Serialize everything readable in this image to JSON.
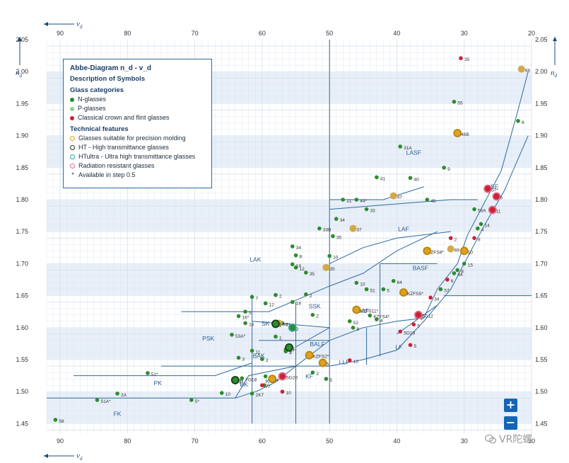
{
  "chart_data": {
    "type": "scatter",
    "title": "Abbe-Diagram n_d - v_d",
    "xlabel": "v_d",
    "ylabel": "n_d",
    "xlim": [
      92,
      20
    ],
    "ylim": [
      1.435,
      2.05
    ],
    "x_ticks": [
      "90",
      "80",
      "70",
      "60",
      "50",
      "40",
      "30",
      "20"
    ],
    "y_ticks": [
      "2.05",
      "2.00",
      "1.95",
      "1.90",
      "1.85",
      "1.80",
      "1.75",
      "1.70",
      "1.65",
      "1.60",
      "1.55",
      "1.50",
      "1.45"
    ],
    "grid": true,
    "bands": [
      [
        1.95,
        2.0
      ],
      [
        1.85,
        1.9
      ],
      [
        1.75,
        1.8
      ],
      [
        1.65,
        1.7
      ],
      [
        1.55,
        1.6
      ],
      [
        1.45,
        1.5
      ]
    ],
    "legend_position": "top-left",
    "regions": [
      {
        "label": "LASF",
        "x": 37.5,
        "y": 1.87
      },
      {
        "label": "SF",
        "x": 25.5,
        "y": 1.817
      },
      {
        "label": "LAF",
        "x": 39,
        "y": 1.751
      },
      {
        "label": "LAK",
        "x": 61,
        "y": 1.703
      },
      {
        "label": "BASF",
        "x": 36.5,
        "y": 1.69
      },
      {
        "label": "SSK",
        "x": 52.2,
        "y": 1.63
      },
      {
        "label": "BAF",
        "x": 45,
        "y": 1.623
      },
      {
        "label": "SK",
        "x": 59.5,
        "y": 1.603
      },
      {
        "label": "PSK",
        "x": 68,
        "y": 1.58
      },
      {
        "label": "BALF",
        "x": 51.8,
        "y": 1.571
      },
      {
        "label": "LF",
        "x": 39.7,
        "y": 1.566
      },
      {
        "label": "BAK",
        "x": 60.5,
        "y": 1.553
      },
      {
        "label": "LLF",
        "x": 47.8,
        "y": 1.543
      },
      {
        "label": "KF",
        "x": 53,
        "y": 1.521
      },
      {
        "label": "K",
        "x": 59.2,
        "y": 1.513
      },
      {
        "label": "BK",
        "x": 62.7,
        "y": 1.508
      },
      {
        "label": "PK",
        "x": 75.5,
        "y": 1.51
      },
      {
        "label": "FK",
        "x": 81.5,
        "y": 1.462
      }
    ],
    "boundaries": [
      [
        [
          92,
          1.49
        ],
        [
          64,
          1.49
        ],
        [
          61,
          1.5
        ],
        [
          60.5,
          1.502
        ],
        [
          58,
          1.515
        ],
        [
          55,
          1.54
        ],
        [
          50,
          1.54
        ],
        [
          45,
          1.55
        ],
        [
          40,
          1.565
        ],
        [
          36,
          1.61
        ],
        [
          32,
          1.66
        ],
        [
          30,
          1.7
        ],
        [
          27,
          1.76
        ],
        [
          24,
          1.815
        ],
        [
          20.5,
          1.9
        ]
      ],
      [
        [
          64,
          1.49
        ],
        [
          62,
          1.525
        ],
        [
          55,
          1.54
        ],
        [
          50,
          1.58
        ],
        [
          45,
          1.6
        ],
        [
          40,
          1.61
        ],
        [
          36,
          1.615
        ],
        [
          34,
          1.66
        ],
        [
          31,
          1.7
        ],
        [
          29.5,
          1.745
        ],
        [
          24.5,
          1.845
        ],
        [
          22,
          1.94
        ],
        [
          20.5,
          2.0
        ]
      ],
      [
        [
          75,
          1.54
        ],
        [
          55,
          1.54
        ]
      ],
      [
        [
          88,
          1.525
        ],
        [
          67,
          1.525
        ],
        [
          61.5,
          1.545
        ]
      ],
      [
        [
          60.5,
          1.58
        ],
        [
          50,
          1.58
        ]
      ],
      [
        [
          61.5,
          1.61
        ],
        [
          50,
          1.6
        ]
      ],
      [
        [
          72,
          1.625
        ],
        [
          59,
          1.625
        ],
        [
          50,
          1.665
        ],
        [
          45,
          1.685
        ],
        [
          40,
          1.72
        ],
        [
          34,
          1.75
        ]
      ],
      [
        [
          61.5,
          1.45
        ],
        [
          61.5,
          1.652
        ]
      ],
      [
        [
          55,
          1.45
        ],
        [
          55,
          1.64
        ]
      ],
      [
        [
          50,
          1.45
        ],
        [
          50,
          2.05
        ]
      ],
      [
        [
          44.5,
          1.542
        ],
        [
          44.5,
          1.6
        ]
      ],
      [
        [
          42.5,
          1.555
        ],
        [
          42.5,
          1.7
        ]
      ],
      [
        [
          42.5,
          1.7
        ],
        [
          34,
          1.7
        ]
      ],
      [
        [
          50,
          1.8
        ],
        [
          42,
          1.8
        ],
        [
          36,
          1.82
        ]
      ],
      [
        [
          50,
          1.785
        ],
        [
          32,
          1.8
        ],
        [
          28,
          1.8
        ]
      ],
      [
        [
          50,
          1.7
        ],
        [
          45,
          1.725
        ],
        [
          40,
          1.74
        ],
        [
          32,
          1.75
        ]
      ],
      [
        [
          55,
          1.57
        ],
        [
          50,
          1.6
        ]
      ],
      [
        [
          33,
          1.65
        ],
        [
          20,
          1.65
        ]
      ],
      [
        [
          40,
          1.59
        ],
        [
          36,
          1.62
        ],
        [
          34,
          1.635
        ]
      ]
    ],
    "series": [
      {
        "name": "N-glasses",
        "color": "#2e8b2e",
        "points": [
          [
            90.7,
            1.456,
            "58"
          ],
          [
            84.5,
            1.487,
            "51A*"
          ],
          [
            81.5,
            1.497,
            "2A"
          ],
          [
            77,
            1.529,
            "51*"
          ],
          [
            70.5,
            1.487,
            "5*"
          ],
          [
            66,
            1.498,
            "10"
          ],
          [
            64,
            1.517,
            "7*"
          ],
          [
            63,
            1.521,
            "7G18"
          ],
          [
            61.5,
            1.497,
            "2K7"
          ],
          [
            59.7,
            1.51,
            "7"
          ],
          [
            61.5,
            1.564,
            "11"
          ],
          [
            63.5,
            1.553,
            "3"
          ],
          [
            64.5,
            1.589,
            "53A*"
          ],
          [
            63.5,
            1.618,
            "16*"
          ],
          [
            62.5,
            1.607,
            "14"
          ],
          [
            62.5,
            1.625,
            "5"
          ],
          [
            61.5,
            1.648,
            "7"
          ],
          [
            59.5,
            1.638,
            "12"
          ],
          [
            58,
            1.651,
            "2"
          ],
          [
            57,
            1.607,
            "2*"
          ],
          [
            56.5,
            1.566,
            "57"
          ],
          [
            56.5,
            1.563,
            "4"
          ],
          [
            58,
            1.586,
            "1"
          ],
          [
            52.5,
            1.62,
            "2"
          ],
          [
            55.5,
            1.64,
            "18"
          ],
          [
            53.5,
            1.652,
            "2"
          ],
          [
            55,
            1.694,
            "12"
          ],
          [
            55.5,
            1.699,
            "14"
          ],
          [
            55,
            1.713,
            "8"
          ],
          [
            53.5,
            1.686,
            "35"
          ],
          [
            55.5,
            1.727,
            "34"
          ],
          [
            51.5,
            1.755,
            "33B"
          ],
          [
            49.5,
            1.743,
            "35"
          ],
          [
            50,
            1.712,
            "10"
          ],
          [
            49,
            1.77,
            "34"
          ],
          [
            48,
            1.8,
            "21"
          ],
          [
            46,
            1.8,
            "44*"
          ],
          [
            44.5,
            1.785,
            "33"
          ],
          [
            43,
            1.835,
            "41"
          ],
          [
            39.5,
            1.883,
            "31A"
          ],
          [
            38,
            1.834,
            "40"
          ],
          [
            35.5,
            1.8,
            "45"
          ],
          [
            33,
            1.85,
            "9"
          ],
          [
            31.5,
            1.953,
            "55"
          ],
          [
            22,
            1.923,
            "6"
          ],
          [
            46,
            1.67,
            "10"
          ],
          [
            44.5,
            1.66,
            "51"
          ],
          [
            40.5,
            1.673,
            "64"
          ],
          [
            42,
            1.66,
            "5"
          ],
          [
            47,
            1.61,
            "52"
          ],
          [
            44,
            1.619,
            "KZFS4*"
          ],
          [
            43,
            1.613,
            "4"
          ],
          [
            46.5,
            1.6,
            "8"
          ],
          [
            52.5,
            1.53,
            "2"
          ],
          [
            50.5,
            1.52,
            "5"
          ],
          [
            59.5,
            1.524,
            "5"
          ],
          [
            60,
            1.551,
            "2"
          ],
          [
            27.5,
            1.762,
            "14"
          ],
          [
            28.5,
            1.785,
            "56A"
          ],
          [
            28,
            1.755,
            "4"
          ],
          [
            30,
            1.7,
            "15"
          ],
          [
            31,
            1.69,
            "8"
          ],
          [
            31.5,
            1.685,
            "64"
          ],
          [
            33.5,
            1.66,
            "57"
          ]
        ]
      },
      {
        "name": "P-glasses",
        "color": "#d4a94a",
        "points": [
          [
            21.5,
            2.004,
            "68"
          ],
          [
            40.5,
            1.806,
            "47"
          ],
          [
            46.5,
            1.755,
            "37"
          ],
          [
            32,
            1.723,
            "69"
          ],
          [
            50.5,
            1.694,
            "35"
          ],
          [
            57.5,
            1.607,
            "60"
          ]
        ]
      },
      {
        "name": "Classical crown and flint glasses",
        "color": "#cc2233",
        "points": [
          [
            30.5,
            2.021,
            "35"
          ],
          [
            60,
            1.51,
            "7"
          ],
          [
            57,
            1.5,
            "10"
          ],
          [
            47,
            1.549,
            "10"
          ],
          [
            38,
            1.573,
            "5"
          ],
          [
            39.5,
            1.594,
            "5G19"
          ],
          [
            37.5,
            1.605,
            "5"
          ],
          [
            37,
            1.617,
            "2"
          ],
          [
            35,
            1.647,
            "34"
          ],
          [
            32,
            1.74,
            "2"
          ],
          [
            28.5,
            1.74,
            "8"
          ],
          [
            32.5,
            1.675,
            "6"
          ]
        ]
      },
      {
        "name": "Glasses suitable for precision molding",
        "color": "#e0a020",
        "ring": "#b8860b",
        "points": [
          [
            58.5,
            1.52,
            "4"
          ],
          [
            53,
            1.557,
            "KZFS2*"
          ],
          [
            51,
            1.545,
            "5"
          ],
          [
            46,
            1.628,
            "KZFS11*"
          ],
          [
            35.5,
            1.72,
            "ZFS8*"
          ],
          [
            39,
            1.655,
            "KZFS5*"
          ],
          [
            31,
            1.904,
            "46B"
          ],
          [
            30,
            1.72,
            "10"
          ]
        ]
      },
      {
        "name": "HT - High transmittance glasses",
        "color": "#2e8b2e",
        "ring": "#143d14",
        "points": [
          [
            58,
            1.606,
            "2*"
          ],
          [
            56,
            1.569,
            "1"
          ],
          [
            64,
            1.518,
            "7*"
          ]
        ]
      },
      {
        "name": "HTultra - Ultra high transmittance glasses",
        "color": "#2e8b2e",
        "ring": "#2aa8a8",
        "points": [
          [
            55.5,
            1.6,
            "2"
          ]
        ]
      },
      {
        "name": "Radiation resistant glasses",
        "color": "#cc2233",
        "ring": "#e06a8a",
        "points": [
          [
            57,
            1.524,
            "SG20"
          ],
          [
            36.8,
            1.62,
            "5G12"
          ],
          [
            26.5,
            1.817,
            "57*"
          ],
          [
            25.2,
            1.805,
            "6"
          ],
          [
            25.8,
            1.784,
            "11"
          ]
        ]
      }
    ]
  },
  "axes": {
    "top_label": "v",
    "top_sub": "d",
    "bottom_label": "v",
    "bottom_sub": "d",
    "left_label": "n",
    "left_sub": "d",
    "right_label": "n",
    "right_sub": "d"
  },
  "legend": {
    "title": "Abbe-Diagram n_d - v_d",
    "subtitle": "Description of Symbols",
    "categories_heading": "Glass categories",
    "categories": [
      {
        "label": "N-glasses",
        "color": "#2e8b2e"
      },
      {
        "label": "P-glasses",
        "color": "#8fcf8f"
      },
      {
        "label": "Classical crown and flint glasses",
        "color": "#cc2233"
      }
    ],
    "features_heading": "Technical features",
    "features": [
      {
        "label": "Glasses suitable for precision molding",
        "ring": "#e0a020"
      },
      {
        "label": "HT - High transmittance glasses",
        "ring": "#143d14"
      },
      {
        "label": "HTultra - Ultra high transmittance glasses",
        "ring": "#2aa8a8"
      },
      {
        "label": "Radiation resistant glasses",
        "ring": "#e06a8a"
      }
    ],
    "step_note_symbol": "*",
    "step_note": "Available in step 0.5"
  },
  "controls": {
    "zoom_in": "+",
    "zoom_out": "−"
  },
  "watermark": {
    "text": "VR陀螺"
  },
  "colors": {
    "band": "#e8eff8",
    "grid": "#d8e2ee",
    "boundary": "#2f6a9e",
    "axis": "#1a4a7a"
  }
}
